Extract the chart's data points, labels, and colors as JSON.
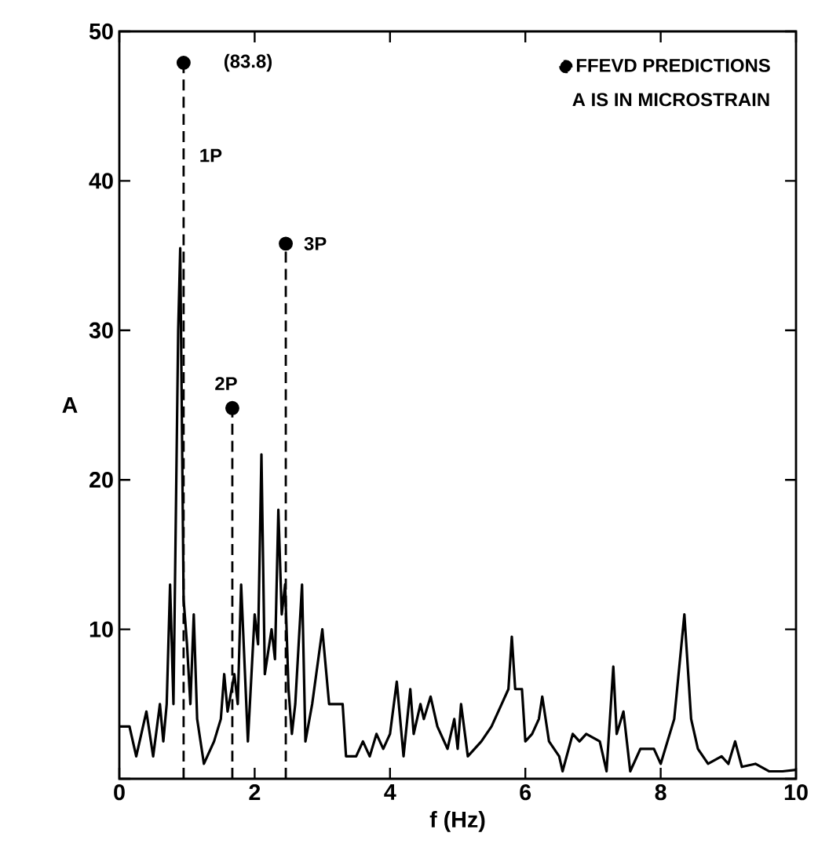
{
  "chart_data": {
    "type": "line",
    "xlabel": "f (Hz)",
    "ylabel": "A",
    "xlim": [
      0,
      10
    ],
    "xticks": [
      0,
      2,
      4,
      6,
      8,
      10
    ],
    "ylim": [
      0,
      50
    ],
    "yticks": [
      {
        "value": 0,
        "label": null
      },
      10,
      20,
      30,
      40,
      50
    ],
    "legend": "top right",
    "grid": false,
    "series": [
      {
        "color": "#000000",
        "line_style": "solid",
        "marker": "none",
        "x": [
          0,
          0.15,
          0.25,
          0.4,
          0.5,
          0.6,
          0.65,
          0.7,
          0.75,
          0.8,
          0.87,
          0.9,
          0.95,
          1.0,
          1.05,
          1.1,
          1.15,
          1.25,
          1.4,
          1.5,
          1.55,
          1.6,
          1.7,
          1.75,
          1.8,
          1.9,
          2.0,
          2.05,
          2.1,
          2.15,
          2.25,
          2.3,
          2.35,
          2.4,
          2.45,
          2.5,
          2.55,
          2.6,
          2.7,
          2.75,
          2.85,
          3.0,
          3.1,
          3.2,
          3.3,
          3.35,
          3.5,
          3.6,
          3.7,
          3.8,
          3.9,
          4.0,
          4.1,
          4.2,
          4.3,
          4.35,
          4.45,
          4.5,
          4.6,
          4.7,
          4.85,
          4.95,
          5.0,
          5.05,
          5.15,
          5.35,
          5.5,
          5.65,
          5.75,
          5.8,
          5.85,
          5.95,
          6.0,
          6.1,
          6.2,
          6.25,
          6.35,
          6.5,
          6.55,
          6.7,
          6.8,
          6.9,
          7.1,
          7.2,
          7.3,
          7.35,
          7.45,
          7.55,
          7.7,
          7.9,
          8.0,
          8.2,
          8.35,
          8.45,
          8.55,
          8.7,
          8.9,
          9.0,
          9.1,
          9.2,
          9.4,
          9.6,
          9.8,
          10
        ],
        "values": [
          3.5,
          3.5,
          1.5,
          4.5,
          1.5,
          5,
          2.5,
          5,
          13,
          5,
          30,
          35.5,
          12,
          9,
          5,
          11,
          4,
          1,
          2.5,
          4,
          7,
          4.5,
          7,
          5,
          13,
          2.5,
          11,
          9,
          21.7,
          7,
          10,
          8,
          18,
          11,
          13,
          6,
          3,
          5,
          13,
          2.5,
          5,
          10,
          5,
          5,
          5,
          1.5,
          1.5,
          2.5,
          1.5,
          3,
          2,
          3,
          6.5,
          1.5,
          6,
          3,
          5,
          4,
          5.5,
          3.5,
          2,
          4,
          2,
          5,
          1.5,
          2.5,
          3.5,
          5,
          6,
          9.5,
          6,
          6,
          2.5,
          3,
          4,
          5.5,
          2.5,
          1.5,
          0.5,
          3,
          2.5,
          3,
          2.5,
          0.5,
          7.5,
          3,
          4.5,
          0.5,
          2,
          2,
          1,
          4,
          11,
          4,
          2,
          1,
          1.5,
          1,
          2.5,
          0.8,
          1,
          0.5,
          0.5,
          0.6
        ]
      },
      {
        "type": "lollipop",
        "name": "FFEVD PREDICTIONS",
        "color": "#000000",
        "line_style": "dashed",
        "marker": "circle",
        "x": [
          0.95,
          1.67,
          2.46
        ],
        "values": [
          47.9,
          24.8,
          35.8
        ]
      }
    ],
    "annotations": [
      "A IS IN MICROSTRAIN",
      {
        "text": "(83.8)",
        "x": 0.95,
        "y": 47.9
      },
      "1P",
      {
        "text": "2P",
        "x": 1.67,
        "y": 24.8
      },
      {
        "text": "3P",
        "x": 2.46,
        "y": 35.8
      }
    ]
  }
}
